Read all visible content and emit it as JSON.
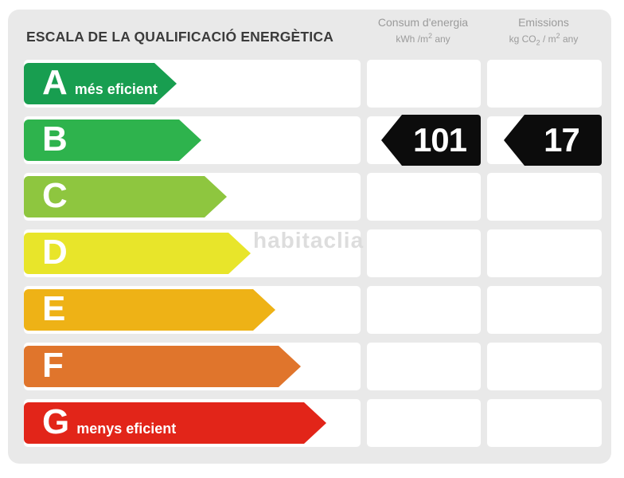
{
  "title": "ESCALA DE LA QUALIFICACIÓ ENERGÈTICA",
  "columns": [
    {
      "title": "Consum d'energia",
      "unit": {
        "p1": "kWh /m",
        "sup1": "2",
        "p2": " any"
      }
    },
    {
      "title": "Emissions",
      "unit": {
        "p1": "kg CO",
        "sub1": "2",
        "p2": " / m",
        "sup2": "2",
        "p3": " any"
      }
    }
  ],
  "ratings": [
    {
      "letter": "A",
      "label": "més eficient",
      "color": "#189e50",
      "arrow_width": 192
    },
    {
      "letter": "B",
      "label": "",
      "color": "#2eb34d",
      "arrow_width": 223,
      "consum": "101",
      "emissions": "17"
    },
    {
      "letter": "C",
      "label": "",
      "color": "#8ec63f",
      "arrow_width": 255
    },
    {
      "letter": "D",
      "label": "",
      "color": "#e8e52a",
      "arrow_width": 285
    },
    {
      "letter": "E",
      "label": "",
      "color": "#eeb216",
      "arrow_width": 316
    },
    {
      "letter": "F",
      "label": "",
      "color": "#e0752c",
      "arrow_width": 348
    },
    {
      "letter": "G",
      "label": "menys eficient",
      "color": "#e22519",
      "arrow_width": 380
    }
  ],
  "current_rating": "B",
  "watermark": "habitaclia",
  "colors": {
    "panel_background": "#e9e9e9",
    "row_background": "#ffffff",
    "value_tag": "#0c0c0c",
    "header_text": "#9b9b9b",
    "title_text": "#3b3b3b"
  },
  "chart_data": {
    "type": "bar",
    "title": "ESCALA DE LA QUALIFICACIÓ ENERGÈTICA",
    "categories": [
      "A",
      "B",
      "C",
      "D",
      "E",
      "F",
      "G"
    ],
    "category_annotations": {
      "A": "més eficient",
      "G": "menys eficient"
    },
    "bar_colors": [
      "#189e50",
      "#2eb34d",
      "#8ec63f",
      "#e8e52a",
      "#eeb216",
      "#e0752c",
      "#e22519"
    ],
    "bar_relative_lengths": [
      192,
      223,
      255,
      285,
      316,
      348,
      380
    ],
    "highlighted_category": "B",
    "value_columns": [
      "Consum d'energia kWh/m2 any",
      "Emissions kg CO2/m2 any"
    ],
    "values": {
      "consum_energia_kwh_m2_any": 101,
      "emissions_kg_co2_m2_any": 17
    },
    "legend_position": "none",
    "grid": false
  }
}
